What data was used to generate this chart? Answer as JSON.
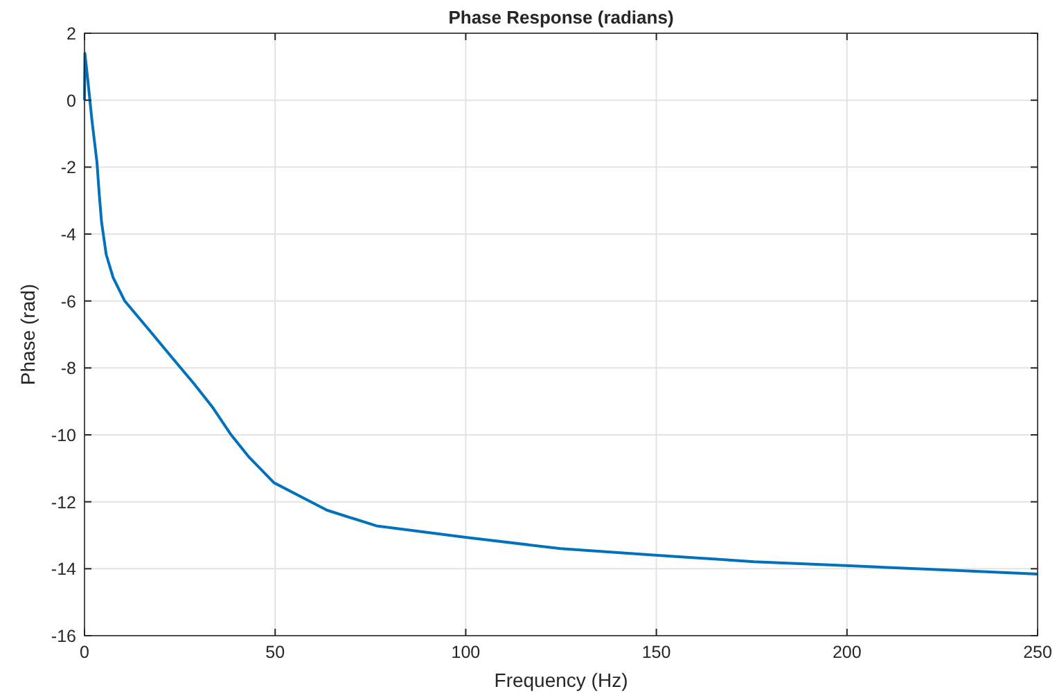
{
  "chart_data": {
    "type": "line",
    "title": "Phase Response (radians)",
    "xlabel": "Frequency (Hz)",
    "ylabel": "Phase (rad)",
    "xlim": [
      0,
      250
    ],
    "xticks": [
      0,
      50,
      100,
      150,
      200,
      250
    ],
    "ylim": [
      -16,
      2
    ],
    "yticks": [
      -16,
      -14,
      -12,
      -10,
      -8,
      -6,
      -4,
      -2,
      0,
      2
    ],
    "grid": true,
    "series": [
      {
        "color": "#0072bd",
        "x": [
          0,
          0.1,
          0.85,
          1.97,
          3.27,
          3.87,
          4.48,
          5.69,
          7.51,
          10.5,
          16.6,
          22.6,
          28.7,
          33.5,
          38.4,
          43.2,
          49.7,
          57.8,
          63.6,
          76.6,
          100,
          124.9,
          150.4,
          175.7,
          200.7,
          226.5,
          250
        ],
        "values": [
          0,
          1.4,
          0.62,
          -0.62,
          -1.86,
          -2.82,
          -3.65,
          -4.61,
          -5.3,
          -5.99,
          -6.82,
          -7.64,
          -8.47,
          -9.16,
          -9.99,
          -10.67,
          -11.43,
          -11.91,
          -12.25,
          -12.72,
          -13.06,
          -13.4,
          -13.6,
          -13.79,
          -13.91,
          -14.04,
          -14.16
        ]
      }
    ]
  }
}
